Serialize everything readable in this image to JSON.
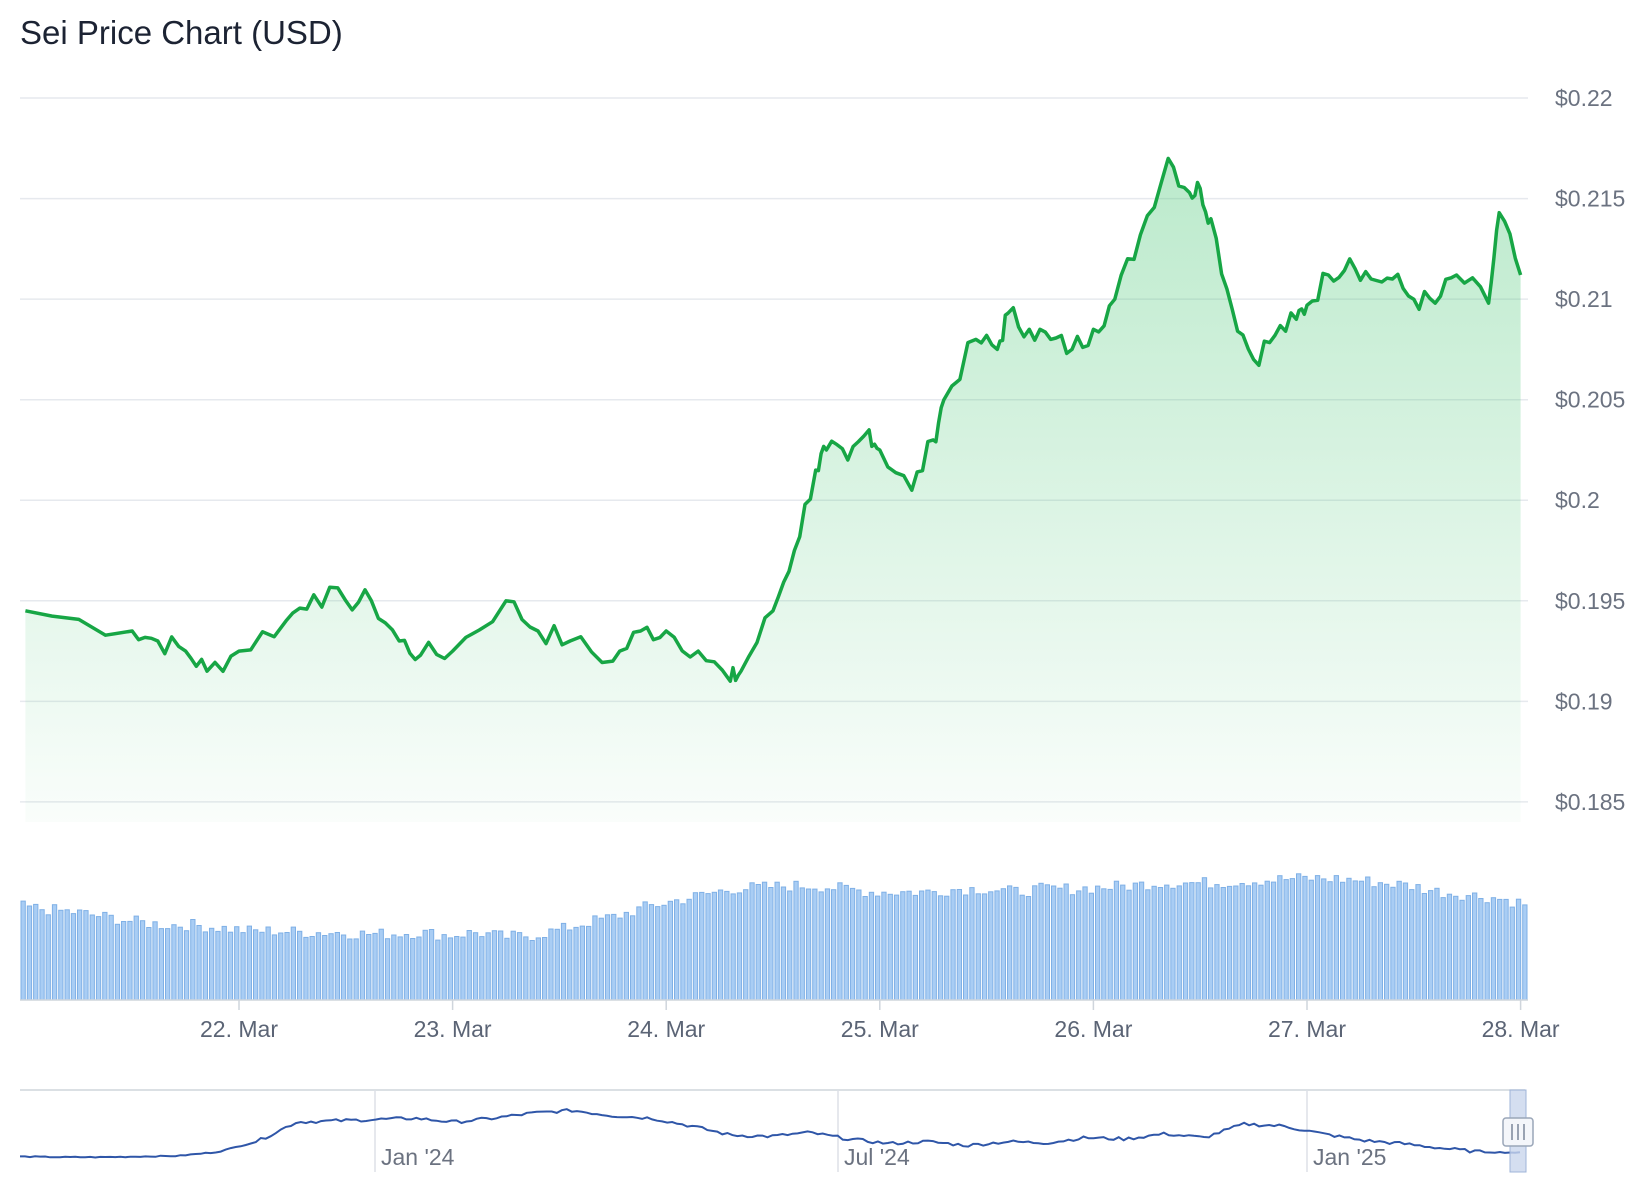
{
  "title": "Sei Price Chart (USD)",
  "chart_data": {
    "type": "area",
    "title": "Sei Price Chart (USD)",
    "y_ticks": [
      "$0.22",
      "$0.215",
      "$0.21",
      "$0.205",
      "$0.2",
      "$0.195",
      "$0.19",
      "$0.185"
    ],
    "ylim": [
      0.184,
      0.2205
    ],
    "x_ticks": [
      "22. Mar",
      "23. Mar",
      "24. Mar",
      "25. Mar",
      "26. Mar",
      "27. Mar",
      "28. Mar"
    ],
    "x_range_days": [
      21.0,
      28.0
    ],
    "price": {
      "x_days": [
        21.0,
        21.5,
        21.62,
        21.75,
        21.85,
        22.0,
        22.22,
        22.35,
        22.5,
        22.62,
        22.75,
        22.85,
        23.0,
        23.25,
        23.4,
        23.55,
        23.75,
        23.88,
        24.0,
        24.15,
        24.3,
        24.35,
        24.5,
        24.6,
        24.7,
        24.75,
        24.85,
        24.95,
        25.0,
        25.15,
        25.25,
        25.3,
        25.45,
        25.55,
        25.6,
        25.7,
        25.8,
        25.9,
        26.0,
        26.1,
        26.22,
        26.35,
        26.45,
        26.5,
        26.55,
        26.65,
        26.75,
        26.85,
        26.95,
        27.0,
        27.1,
        27.2,
        27.3,
        27.4,
        27.5,
        27.6,
        27.7,
        27.85,
        27.9,
        28.0
      ],
      "values": [
        0.1945,
        0.1935,
        0.193,
        0.1925,
        0.1915,
        0.1925,
        0.194,
        0.1953,
        0.195,
        0.195,
        0.193,
        0.1923,
        0.1925,
        0.195,
        0.1935,
        0.193,
        0.192,
        0.1935,
        0.1935,
        0.1925,
        0.191,
        0.1915,
        0.1945,
        0.1975,
        0.2015,
        0.2025,
        0.202,
        0.2035,
        0.2025,
        0.2005,
        0.203,
        0.205,
        0.208,
        0.2075,
        0.2093,
        0.2085,
        0.208,
        0.2075,
        0.2085,
        0.21,
        0.2132,
        0.217,
        0.2153,
        0.2155,
        0.214,
        0.2095,
        0.207,
        0.2082,
        0.209,
        0.2097,
        0.2112,
        0.212,
        0.211,
        0.211,
        0.21,
        0.2098,
        0.2112,
        0.2098,
        0.2143,
        0.2112
      ]
    },
    "volume": {
      "ylim": [
        0,
        1
      ],
      "relative_values": [
        0.62,
        0.6,
        0.58,
        0.55,
        0.52,
        0.5,
        0.5,
        0.48,
        0.46,
        0.46,
        0.45,
        0.45,
        0.44,
        0.44,
        0.45,
        0.43,
        0.45,
        0.42,
        0.43,
        0.47,
        0.52,
        0.56,
        0.62,
        0.66,
        0.7,
        0.74,
        0.75,
        0.76,
        0.76,
        0.74,
        0.72,
        0.72,
        0.72,
        0.74,
        0.74,
        0.72,
        0.74,
        0.74,
        0.75,
        0.76,
        0.78,
        0.78,
        0.78,
        0.79,
        0.8,
        0.81,
        0.81,
        0.8,
        0.78,
        0.76,
        0.72,
        0.7,
        0.68,
        0.64
      ]
    },
    "navigator": {
      "x_ticks": [
        "Jan '24",
        "Jul '24",
        "Jan '25"
      ],
      "x_range": [
        "2023-08",
        "2025-03"
      ],
      "values": [
        0.13,
        0.12,
        0.12,
        0.13,
        0.14,
        0.2,
        0.36,
        0.66,
        0.68,
        0.7,
        0.72,
        0.66,
        0.72,
        0.8,
        0.84,
        0.76,
        0.72,
        0.6,
        0.46,
        0.44,
        0.5,
        0.4,
        0.33,
        0.36,
        0.3,
        0.36,
        0.34,
        0.42,
        0.4,
        0.48,
        0.42,
        0.63,
        0.6,
        0.48,
        0.38,
        0.33,
        0.26,
        0.2,
        0.19
      ]
    }
  }
}
